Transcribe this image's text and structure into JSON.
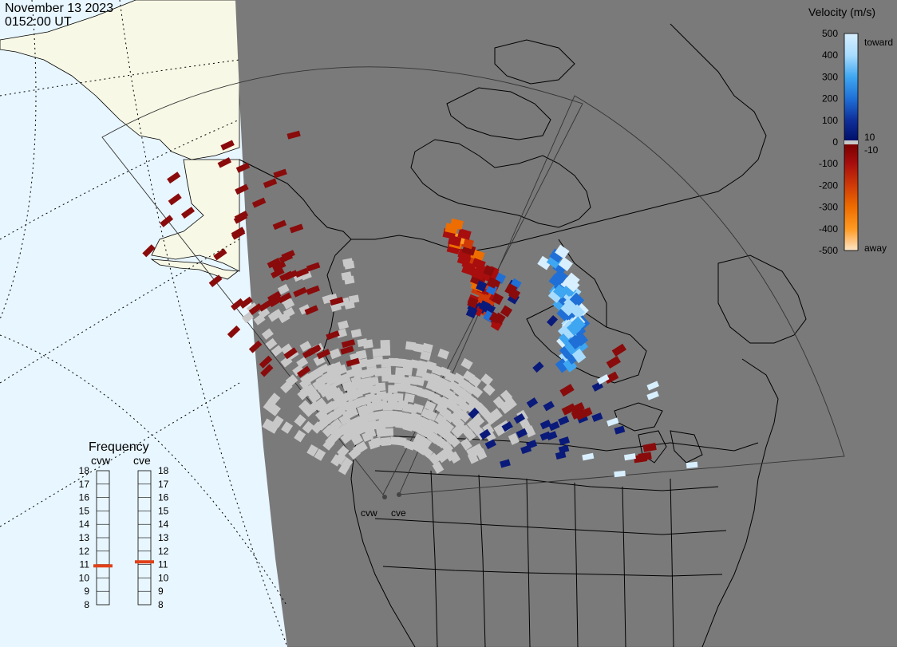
{
  "header": {
    "date": "November 13 2023",
    "time": "0152:00 UT"
  },
  "colors": {
    "night_shade": "#7a7a7a",
    "day_ocean": "#e8f6ff",
    "day_land": "#f8f8e8",
    "ground_scatter": "#c8c8c8",
    "frequency_marker": "#e0401a",
    "coastline": "#000000"
  },
  "legend": {
    "title": "Velocity (m/s)",
    "ticks": [
      "500",
      "400",
      "300",
      "200",
      "100",
      "0",
      "-100",
      "-200",
      "-300",
      "-400",
      "-500"
    ],
    "label_10": "10",
    "label_minus10": "-10",
    "label_toward": "toward",
    "label_away": "away",
    "color_stops": [
      {
        "value": 500,
        "color": "#d8efff"
      },
      {
        "value": 400,
        "color": "#a8dcff"
      },
      {
        "value": 300,
        "color": "#3fa7f2"
      },
      {
        "value": 200,
        "color": "#1f6fd6"
      },
      {
        "value": 100,
        "color": "#0f2f9a"
      },
      {
        "value": 10,
        "color": "#00106b"
      },
      {
        "value": -10,
        "color": "#7a0000"
      },
      {
        "value": -100,
        "color": "#a80e0e"
      },
      {
        "value": -200,
        "color": "#cf3a08"
      },
      {
        "value": -300,
        "color": "#ee6d00"
      },
      {
        "value": -400,
        "color": "#ff9a22"
      },
      {
        "value": -500,
        "color": "#ffe6c8"
      }
    ]
  },
  "frequency": {
    "title": "Frequency",
    "radars": [
      {
        "name": "cvw",
        "frequency_mhz": 10.9
      },
      {
        "name": "cve",
        "frequency_mhz": 11.2
      }
    ],
    "scale": [
      "18",
      "17",
      "16",
      "15",
      "14",
      "13",
      "12",
      "11",
      "10",
      "9",
      "8"
    ]
  },
  "sites": [
    {
      "name": "cvw"
    },
    {
      "name": "cve"
    }
  ]
}
